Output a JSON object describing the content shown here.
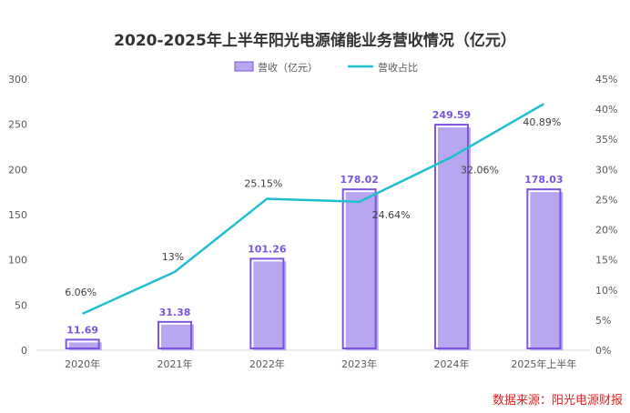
{
  "chart_data": {
    "type": "bar",
    "title": "2020-2025年上半年阳光电源储能业务营收情况（亿元）",
    "categories": [
      "2020年",
      "2021年",
      "2022年",
      "2023年",
      "2024年",
      "2025年上半年"
    ],
    "series": [
      {
        "name": "营收（亿元）",
        "type": "bar",
        "axis": "left",
        "values": [
          11.69,
          31.38,
          101.26,
          178.02,
          249.59,
          178.03
        ],
        "labels": [
          "11.69",
          "31.38",
          "101.26",
          "178.02",
          "249.59",
          "178.03"
        ],
        "color": "#b9a6f0",
        "outline": "#7b55e0"
      },
      {
        "name": "营收占比",
        "type": "line",
        "axis": "right",
        "values": [
          6.06,
          13,
          25.15,
          24.64,
          32.06,
          40.89
        ],
        "labels": [
          "6.06%",
          "13%",
          "25.15%",
          "24.64%",
          "32.06%",
          "40.89%"
        ],
        "color": "#1fbfd0"
      }
    ],
    "y_left": {
      "min": 0,
      "max": 300,
      "ticks": [
        "0",
        "50",
        "100",
        "150",
        "200",
        "250",
        "300"
      ]
    },
    "y_right": {
      "min": 0,
      "max": 45,
      "ticks": [
        "0%",
        "5%",
        "10%",
        "15%",
        "20%",
        "25%",
        "30%",
        "35%",
        "40%",
        "45%"
      ]
    },
    "legend_position": "top-center",
    "grid": false
  },
  "source_text": "数据来源：阳光电源财报"
}
